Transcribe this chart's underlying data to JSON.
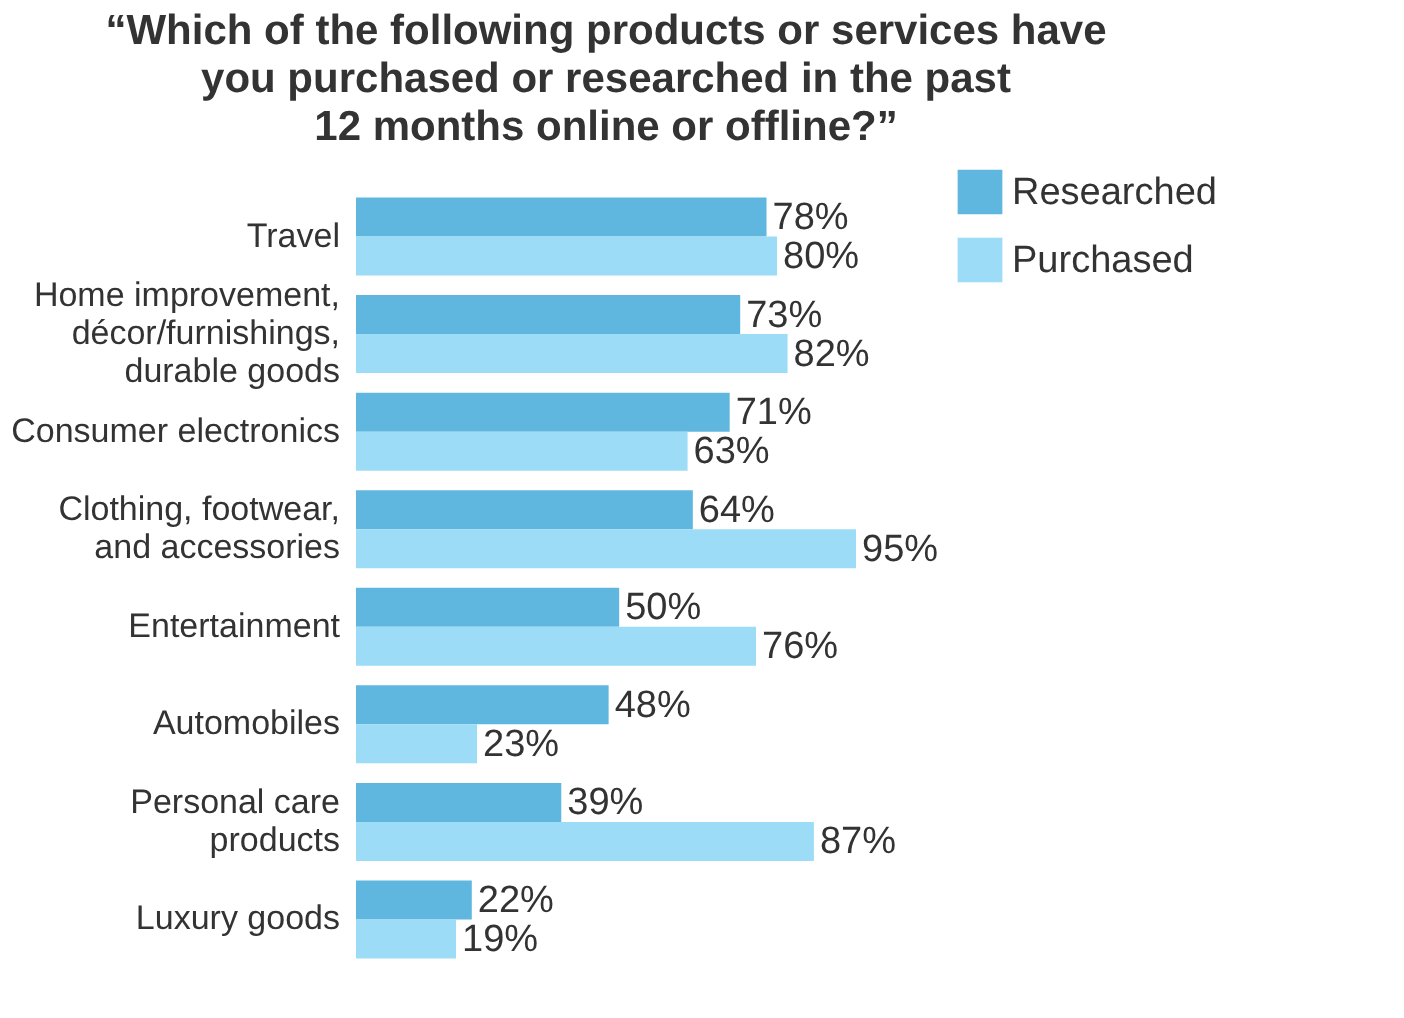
{
  "chart_data": {
    "type": "bar",
    "orientation": "horizontal",
    "title": "“Which of the following products or services have\nyou purchased or researched in the past\n12 months online or offline?”",
    "categories": [
      "Travel",
      "Home improvement,\ndécor/furnishings,\ndurable goods",
      "Consumer electronics",
      "Clothing, footwear,\nand accessories",
      "Entertainment",
      "Automobiles",
      "Personal care\nproducts",
      "Luxury goods"
    ],
    "series": [
      {
        "name": "Researched",
        "color": "#5fb7e0",
        "values": [
          78,
          73,
          71,
          64,
          50,
          48,
          39,
          22
        ],
        "value_labels": [
          "78%",
          "73%",
          "71%",
          "64%",
          "50%",
          "48%",
          "39%",
          "22%"
        ]
      },
      {
        "name": "Purchased",
        "color": "#9cdcf6",
        "values": [
          80,
          82,
          63,
          95,
          76,
          23,
          87,
          19
        ],
        "value_labels": [
          "80%",
          "82%",
          "63%",
          "95%",
          "76%",
          "23%",
          "87%",
          "19%"
        ]
      }
    ],
    "legend": "top right",
    "grid": false
  }
}
